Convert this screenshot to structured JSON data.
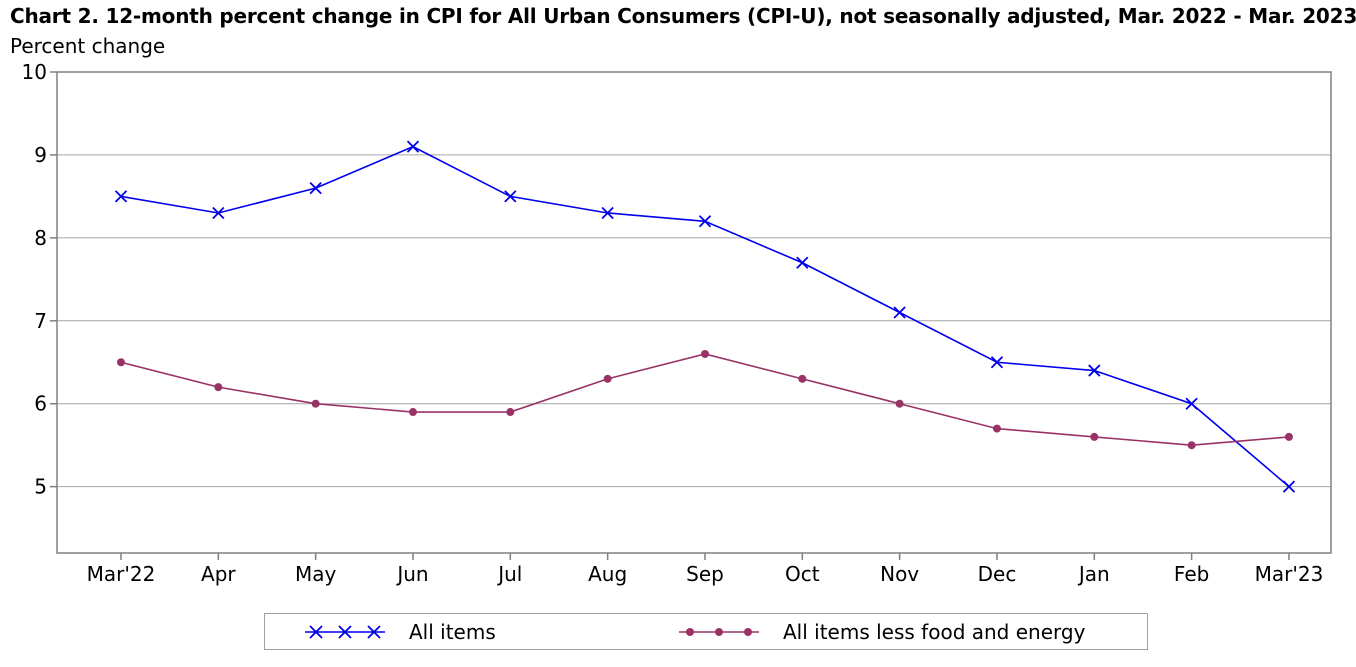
{
  "header": {
    "title": "Chart 2. 12-month percent change in CPI for All Urban Consumers (CPI-U), not seasonally adjusted, Mar. 2022 - Mar. 2023",
    "ylabel": "Percent change"
  },
  "legend": {
    "all_items": "All items",
    "core": "All items less food and energy"
  },
  "colors": {
    "all_items": "#0000ee",
    "core": "#993366",
    "grid": "#a6a6a6",
    "axis": "#808080"
  },
  "chart_data": {
    "type": "line",
    "title": "Chart 2. 12-month percent change in CPI for All Urban Consumers (CPI-U), not seasonally adjusted, Mar. 2022 - Mar. 2023",
    "xlabel": "",
    "ylabel": "Percent change",
    "categories": [
      "Mar'22",
      "Apr",
      "May",
      "Jun",
      "Jul",
      "Aug",
      "Sep",
      "Oct",
      "Nov",
      "Dec",
      "Jan",
      "Feb",
      "Mar'23"
    ],
    "ylim": [
      4.2,
      10
    ],
    "yticks": [
      5,
      6,
      7,
      8,
      9,
      10
    ],
    "grid": true,
    "legend_position": "bottom",
    "series": [
      {
        "name": "All items",
        "marker": "x",
        "values": [
          8.5,
          8.3,
          8.6,
          9.1,
          8.5,
          8.3,
          8.2,
          7.7,
          7.1,
          6.5,
          6.4,
          6.0,
          5.0
        ]
      },
      {
        "name": "All items less food and energy",
        "marker": "circle",
        "values": [
          6.5,
          6.2,
          6.0,
          5.9,
          5.9,
          6.3,
          6.6,
          6.3,
          6.0,
          5.7,
          5.6,
          5.5,
          5.6
        ]
      }
    ]
  }
}
